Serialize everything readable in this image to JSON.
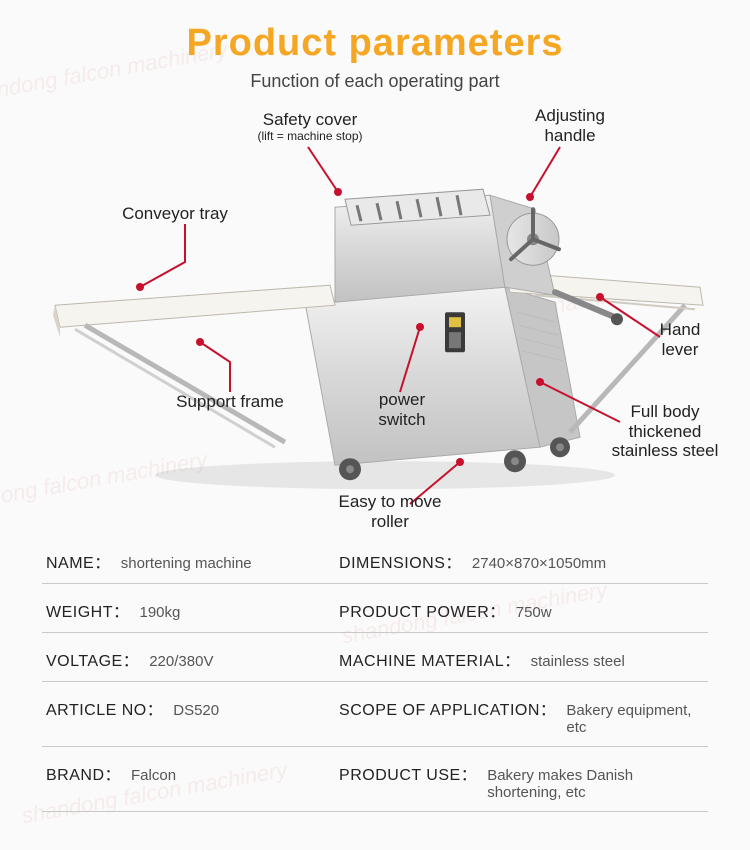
{
  "header": {
    "title": "Product parameters",
    "title_color": "#f5a623",
    "subtitle": "Function of each operating part",
    "subtitle_color": "#444444"
  },
  "accent_color": "#c8102e",
  "watermark_text": "shandong falcon machinery",
  "callouts": {
    "safety_cover": {
      "label": "Safety cover",
      "sub": "(lift = machine stop)"
    },
    "adjusting_handle": {
      "label": "Adjusting handle"
    },
    "conveyor_tray": {
      "label": "Conveyor tray"
    },
    "hand_lever": {
      "label": "Hand lever"
    },
    "support_frame": {
      "label": "Support frame"
    },
    "power_switch": {
      "label": "power switch"
    },
    "full_body": {
      "label": "Full body thickened stainless steel"
    },
    "easy_roller": {
      "label": "Easy to move roller"
    }
  },
  "specs": [
    {
      "left_label": "NAME：",
      "left_value": "shortening machine",
      "right_label": "DIMENSIONS：",
      "right_value": "2740×870×1050mm"
    },
    {
      "left_label": "WEIGHT：",
      "left_value": "190kg",
      "right_label": "PRODUCT POWER：",
      "right_value": "750w"
    },
    {
      "left_label": "VOLTAGE：",
      "left_value": "220/380V",
      "right_label": "MACHINE MATERIAL：",
      "right_value": "stainless steel"
    },
    {
      "left_label": "ARTICLE NO：",
      "left_value": "DS520",
      "right_label": "SCOPE OF APPLICATION：",
      "right_value": "Bakery equipment, etc"
    },
    {
      "left_label": "BRAND：",
      "left_value": "Falcon",
      "right_label": "PRODUCT USE：",
      "right_value": "Bakery makes Danish shortening, etc"
    }
  ],
  "machine_colors": {
    "steel_light": "#e8e8e8",
    "steel_mid": "#cfcfcf",
    "steel_dark": "#b5b5b5",
    "belt": "#f6f4ef",
    "shadow": "#9a9a9a",
    "panel": "#dedede",
    "switch_body": "#3a3a3a",
    "switch_btn": "#e0c040",
    "wheel": "#555"
  }
}
